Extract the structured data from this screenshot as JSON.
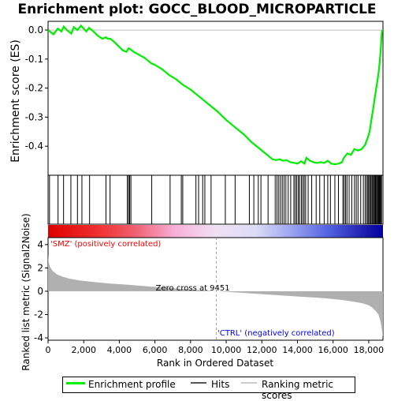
{
  "title": "Enrichment plot: GOCC_BLOOD_MICROPARTICLE",
  "chart_data": [
    {
      "type": "line",
      "panel": "enrichment-profile",
      "ylabel": "Enrichment score (ES)",
      "xlim": [
        0,
        18800
      ],
      "ylim": [
        -0.5,
        0.03
      ],
      "yticks": [
        0.0,
        -0.1,
        -0.2,
        -0.3,
        -0.4
      ],
      "ytick_labels": [
        "0.0",
        "-0.1",
        "-0.2",
        "-0.3",
        "-0.4"
      ],
      "grid": false,
      "series": [
        {
          "name": "Enrichment profile",
          "color": "#00ee00",
          "x": [
            0,
            300,
            550,
            750,
            880,
            1050,
            1300,
            1450,
            1650,
            1850,
            1950,
            2150,
            2300,
            2550,
            2800,
            3050,
            3250,
            3350,
            3500,
            3700,
            3950,
            4200,
            4400,
            4520,
            4600,
            4800,
            5100,
            5400,
            5800,
            6000,
            6400,
            6800,
            7200,
            7500,
            7600,
            8000,
            8400,
            8700,
            9000,
            9500,
            10000,
            10500,
            11000,
            11400,
            11800,
            12200,
            12600,
            12800,
            13000,
            13200,
            13400,
            13600,
            13800,
            14000,
            14200,
            14400,
            14500,
            14700,
            14900,
            15100,
            15300,
            15500,
            15700,
            15900,
            16100,
            16300,
            16500,
            16600,
            16800,
            17000,
            17200,
            17400,
            17600,
            17800,
            17950,
            18050,
            18150,
            18250,
            18350,
            18450,
            18550,
            18620,
            18680,
            18720,
            18750
          ],
          "y": [
            0.0,
            -0.015,
            0.005,
            -0.005,
            0.012,
            0.0,
            -0.012,
            0.01,
            0.0,
            0.015,
            0.008,
            -0.005,
            0.008,
            -0.005,
            -0.02,
            -0.03,
            -0.025,
            -0.03,
            -0.03,
            -0.04,
            -0.055,
            -0.07,
            -0.075,
            -0.063,
            -0.065,
            -0.075,
            -0.085,
            -0.095,
            -0.115,
            -0.12,
            -0.135,
            -0.155,
            -0.17,
            -0.185,
            -0.19,
            -0.205,
            -0.225,
            -0.24,
            -0.255,
            -0.28,
            -0.31,
            -0.335,
            -0.36,
            -0.385,
            -0.405,
            -0.425,
            -0.445,
            -0.448,
            -0.445,
            -0.45,
            -0.448,
            -0.455,
            -0.457,
            -0.46,
            -0.452,
            -0.46,
            -0.44,
            -0.45,
            -0.455,
            -0.458,
            -0.455,
            -0.458,
            -0.45,
            -0.46,
            -0.462,
            -0.46,
            -0.455,
            -0.44,
            -0.425,
            -0.43,
            -0.41,
            -0.415,
            -0.41,
            -0.395,
            -0.37,
            -0.35,
            -0.31,
            -0.27,
            -0.23,
            -0.19,
            -0.15,
            -0.11,
            -0.06,
            -0.02,
            0.0
          ]
        }
      ],
      "hits": [
        80,
        560,
        870,
        1280,
        1650,
        1900,
        2330,
        3250,
        3480,
        4450,
        4520,
        4580,
        4650,
        5820,
        6850,
        7480,
        7560,
        8300,
        8450,
        8680,
        8800,
        9150,
        9950,
        10500,
        11300,
        11550,
        11800,
        11950,
        12350,
        12750,
        12850,
        12950,
        13050,
        13150,
        13250,
        13350,
        13480,
        13620,
        13800,
        13880,
        13960,
        14050,
        14120,
        14220,
        14300,
        14380,
        14460,
        14600,
        14800,
        15050,
        15250,
        15500,
        15700,
        15850,
        16100,
        16300,
        16550,
        16620,
        16700,
        16780,
        16900,
        17050,
        17200,
        17300,
        17400,
        17550,
        17700,
        17800,
        17880,
        17950,
        18000,
        18060,
        18120,
        18180,
        18230,
        18280,
        18330,
        18380,
        18430,
        18480,
        18520,
        18560,
        18600,
        18640,
        18680,
        18720
      ]
    },
    {
      "type": "area",
      "panel": "ranked-list-metric",
      "xlabel": "Rank in Ordered Dataset",
      "ylabel": "Ranked list metric (Signal2Noise)",
      "xlim": [
        0,
        18800
      ],
      "ylim": [
        -4.2,
        4.6
      ],
      "xticks": [
        0,
        2000,
        4000,
        6000,
        8000,
        10000,
        12000,
        14000,
        16000,
        18000
      ],
      "xtick_labels": [
        "0",
        "2,000",
        "4,000",
        "6,000",
        "8,000",
        "10,000",
        "12,000",
        "14,000",
        "16,000",
        "18,000"
      ],
      "yticks": [
        4,
        2,
        0,
        -2,
        -4
      ],
      "ytick_labels": [
        "4",
        "2",
        "0",
        "-2",
        "-4"
      ],
      "grid": false,
      "series": [
        {
          "name": "Ranking metric scores",
          "color": "#b0b0b0",
          "x": [
            0,
            30,
            100,
            250,
            500,
            800,
            1200,
            1800,
            2500,
            3500,
            4500,
            5500,
            6500,
            7500,
            8500,
            9451,
            10500,
            11500,
            12500,
            13500,
            14500,
            15500,
            16500,
            17200,
            17700,
            18000,
            18200,
            18400,
            18550,
            18650,
            18720,
            18770,
            18800
          ],
          "y": [
            3.2,
            2.5,
            2.1,
            1.75,
            1.45,
            1.25,
            1.08,
            0.92,
            0.8,
            0.66,
            0.55,
            0.43,
            0.32,
            0.2,
            0.1,
            0.0,
            -0.1,
            -0.2,
            -0.3,
            -0.4,
            -0.5,
            -0.6,
            -0.75,
            -0.9,
            -1.05,
            -1.2,
            -1.4,
            -1.7,
            -2.0,
            -2.5,
            -3.1,
            -3.7,
            -3.9
          ]
        }
      ],
      "annotations": [
        {
          "text": "Zero cross at 9451",
          "x": 9451
        },
        {
          "text": "'SMZ' (positively correlated)",
          "color": "#ff0000"
        },
        {
          "text": "'CTRL' (negatively correlated)",
          "color": "#0000ff"
        }
      ]
    }
  ],
  "legend": {
    "position": "bottom",
    "items": [
      {
        "label": "Enrichment profile",
        "color": "#00ee00"
      },
      {
        "label": "Hits",
        "color": "#555555"
      },
      {
        "label": "Ranking metric scores",
        "color": "#cccccc"
      }
    ]
  }
}
